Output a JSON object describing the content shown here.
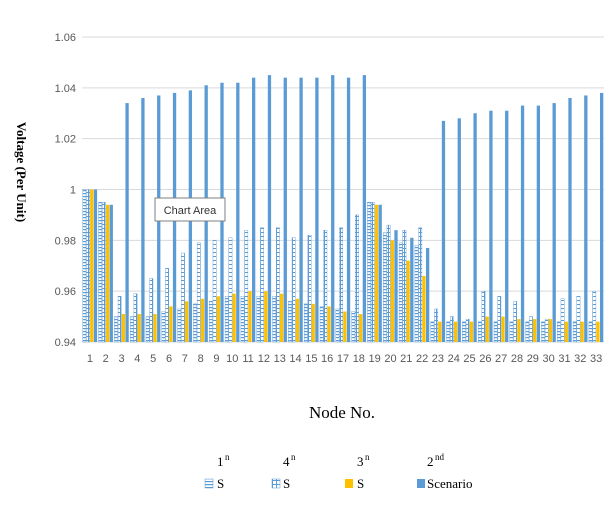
{
  "tooltip": "Chart Area",
  "chart_data": {
    "type": "bar",
    "xlabel": "Node No.",
    "ylabel": "Voltage (Per Unit)",
    "ylim": [
      0.94,
      1.06
    ],
    "yticks": [
      "0.94",
      "0.96",
      "0.98",
      "1",
      "1.02",
      "1.04",
      "1.06"
    ],
    "grid": true,
    "legend_position": "bottom",
    "categories": [
      "1",
      "2",
      "3",
      "4",
      "5",
      "6",
      "7",
      "8",
      "9",
      "10",
      "11",
      "12",
      "13",
      "14",
      "15",
      "16",
      "17",
      "18",
      "19",
      "20",
      "21",
      "22",
      "23",
      "24",
      "25",
      "26",
      "27",
      "28",
      "29",
      "30",
      "31",
      "32",
      "33"
    ],
    "legend": [
      {
        "sup_label": "1",
        "sup": "n",
        "label": "S"
      },
      {
        "sup_label": "4",
        "sup": "n",
        "label": "S"
      },
      {
        "sup_label": "3",
        "sup": "n",
        "label": "S"
      },
      {
        "sup_label": "2",
        "sup": "nd",
        "label": "Scenario"
      }
    ],
    "series": [
      {
        "color": "#5b9bd5",
        "pattern": "hbars",
        "values": [
          1.0,
          0.995,
          0.95,
          0.95,
          0.95,
          0.952,
          0.953,
          0.955,
          0.956,
          0.958,
          0.958,
          0.958,
          0.958,
          0.956,
          0.955,
          0.954,
          0.953,
          0.952,
          0.995,
          0.983,
          0.979,
          0.978,
          0.948,
          0.948,
          0.948,
          0.948,
          0.948,
          0.948,
          0.948,
          0.948,
          0.948,
          0.948,
          0.948
        ]
      },
      {
        "color": "#5b9bd5",
        "pattern": "grid",
        "values": [
          1.0,
          0.995,
          0.958,
          0.959,
          0.965,
          0.969,
          0.975,
          0.979,
          0.98,
          0.981,
          0.984,
          0.985,
          0.985,
          0.981,
          0.982,
          0.984,
          0.985,
          0.99,
          0.995,
          0.986,
          0.984,
          0.985,
          0.953,
          0.95,
          0.949,
          0.96,
          0.958,
          0.956,
          0.95,
          0.949,
          0.957,
          0.958,
          0.96
        ]
      },
      {
        "color": "#ffc000",
        "pattern": "solid",
        "values": [
          1.0,
          0.994,
          0.951,
          0.951,
          0.951,
          0.954,
          0.956,
          0.957,
          0.958,
          0.959,
          0.96,
          0.96,
          0.959,
          0.957,
          0.955,
          0.954,
          0.952,
          0.951,
          0.994,
          0.98,
          0.972,
          0.966,
          0.948,
          0.948,
          0.948,
          0.95,
          0.95,
          0.949,
          0.949,
          0.949,
          0.948,
          0.948,
          0.948
        ]
      },
      {
        "color": "#5b9bd5",
        "pattern": "solid",
        "values": [
          1.0,
          0.994,
          1.034,
          1.036,
          1.037,
          1.038,
          1.039,
          1.041,
          1.042,
          1.042,
          1.044,
          1.045,
          1.044,
          1.044,
          1.044,
          1.045,
          1.044,
          1.045,
          0.994,
          0.984,
          0.981,
          0.977,
          1.027,
          1.028,
          1.03,
          1.031,
          1.031,
          1.033,
          1.033,
          1.034,
          1.036,
          1.037,
          1.038
        ]
      }
    ]
  }
}
